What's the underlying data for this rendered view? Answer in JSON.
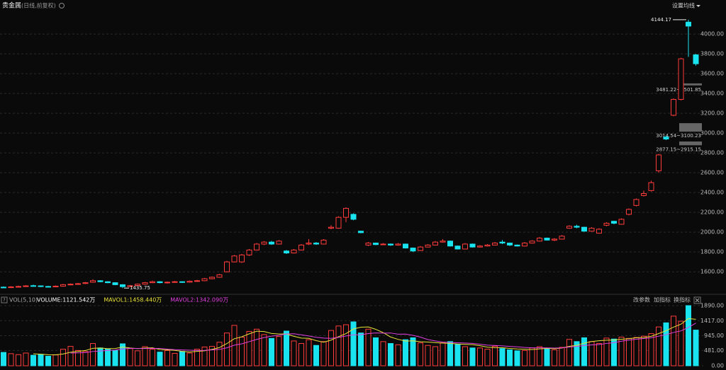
{
  "toolbar": {
    "title": "贵金属",
    "subtitle": "(日线,前复权)",
    "settings": "设置均线"
  },
  "volume_toolbar": {
    "items": [
      "改参数",
      "加指标",
      "换指标"
    ]
  },
  "chart_data": [
    {
      "type": "candlestick",
      "up_color": "#ff3b3b",
      "down_color": "#19e3ee",
      "grid": true,
      "ylim": [
        1380,
        4215
      ],
      "yticks": [
        {
          "value": 1600,
          "label": "1600.00"
        },
        {
          "value": 1800,
          "label": "1800.00"
        },
        {
          "value": 2000,
          "label": "2000.00"
        },
        {
          "value": 2200,
          "label": "2200.00"
        },
        {
          "value": 2400,
          "label": "2400.00"
        },
        {
          "value": 2600,
          "label": "2600.00"
        },
        {
          "value": 2800,
          "label": "2800.00"
        },
        {
          "value": 3000,
          "label": "3000.00"
        },
        {
          "value": 3200,
          "label": "3200.00"
        },
        {
          "value": 3400,
          "label": "3400.00"
        },
        {
          "value": 3600,
          "label": "3600.00"
        },
        {
          "value": 3800,
          "label": "3800.00"
        },
        {
          "value": 4000,
          "label": "4000.00"
        }
      ],
      "open": [
        1445,
        1440,
        1448,
        1452,
        1460,
        1458,
        1452,
        1448,
        1455,
        1470,
        1475,
        1482,
        1495,
        1510,
        1500,
        1490,
        1470,
        1450,
        1462,
        1475,
        1490,
        1500,
        1488,
        1495,
        1500,
        1495,
        1505,
        1510,
        1530,
        1545,
        1600,
        1700,
        1700,
        1770,
        1820,
        1880,
        1900,
        1880,
        1810,
        1790,
        1820,
        1880,
        1890,
        1880,
        2040,
        2040,
        2150,
        2180,
        2010,
        1870,
        1890,
        1875,
        1880,
        1870,
        1880,
        1840,
        1815,
        1850,
        1870,
        1900,
        1910,
        1860,
        1830,
        1880,
        1850,
        1860,
        1870,
        1900,
        1890,
        1870,
        1860,
        1890,
        1910,
        1940,
        1920,
        1930,
        2040,
        2060,
        2050,
        2010,
        1990,
        2070,
        2110,
        2080,
        2180,
        2270,
        2370,
        2420,
        2620,
        2960,
        3180,
        3340,
        4120,
        3790
      ],
      "close": [
        1440,
        1448,
        1452,
        1458,
        1458,
        1452,
        1448,
        1455,
        1470,
        1475,
        1480,
        1490,
        1510,
        1500,
        1490,
        1470,
        1450,
        1460,
        1475,
        1490,
        1500,
        1490,
        1495,
        1500,
        1495,
        1505,
        1510,
        1530,
        1545,
        1570,
        1700,
        1760,
        1770,
        1820,
        1880,
        1900,
        1880,
        1910,
        1790,
        1820,
        1870,
        1890,
        1880,
        1920,
        2050,
        2150,
        2240,
        2130,
        1995,
        1890,
        1875,
        1880,
        1870,
        1880,
        1840,
        1810,
        1850,
        1870,
        1900,
        1910,
        1860,
        1830,
        1880,
        1850,
        1860,
        1870,
        1890,
        1890,
        1870,
        1860,
        1890,
        1910,
        1940,
        1920,
        1930,
        1960,
        2060,
        2050,
        2010,
        2040,
        2030,
        2090,
        2090,
        2130,
        2230,
        2330,
        2390,
        2500,
        2780,
        2940,
        3340,
        3750,
        4080,
        3700
      ],
      "high": [
        1452,
        1455,
        1460,
        1465,
        1470,
        1462,
        1458,
        1462,
        1478,
        1482,
        1488,
        1497,
        1525,
        1515,
        1505,
        1494,
        1475,
        1467,
        1482,
        1497,
        1510,
        1505,
        1502,
        1508,
        1505,
        1512,
        1518,
        1538,
        1552,
        1578,
        1710,
        1770,
        1780,
        1830,
        1890,
        1910,
        1912,
        1920,
        1820,
        1830,
        1880,
        1930,
        1900,
        1930,
        2070,
        2160,
        2250,
        2190,
        2015,
        1900,
        1895,
        1890,
        1886,
        1890,
        1885,
        1845,
        1860,
        1878,
        1910,
        1930,
        1915,
        1865,
        1890,
        1885,
        1868,
        1880,
        1900,
        1920,
        1895,
        1875,
        1900,
        1918,
        1950,
        1945,
        1940,
        1970,
        2070,
        2075,
        2055,
        2050,
        2040,
        2100,
        2115,
        2140,
        2240,
        2340,
        2420,
        2520,
        2790,
        2975,
        3350,
        3760,
        4144.17,
        3800
      ],
      "low": [
        1436,
        1437,
        1444,
        1448,
        1450,
        1446,
        1442,
        1444,
        1450,
        1465,
        1470,
        1476,
        1490,
        1495,
        1484,
        1465,
        1435.75,
        1445,
        1458,
        1470,
        1486,
        1484,
        1482,
        1490,
        1488,
        1490,
        1500,
        1505,
        1525,
        1540,
        1595,
        1695,
        1690,
        1760,
        1815,
        1870,
        1872,
        1875,
        1780,
        1785,
        1815,
        1870,
        1872,
        1875,
        2030,
        2035,
        2100,
        2120,
        1990,
        1860,
        1868,
        1870,
        1862,
        1864,
        1835,
        1800,
        1810,
        1845,
        1865,
        1895,
        1855,
        1825,
        1825,
        1845,
        1845,
        1855,
        1865,
        1880,
        1860,
        1855,
        1855,
        1885,
        1905,
        1915,
        1910,
        1925,
        2035,
        2040,
        2005,
        2005,
        1985,
        2060,
        2080,
        2075,
        2170,
        2260,
        2360,
        2410,
        2600,
        2930,
        3170,
        3330,
        3770,
        3680
      ],
      "gaps": [
        {
          "low": 3481.22,
          "high": 3501.85,
          "label": "3481.22~3501.85"
        },
        {
          "low": 3014.54,
          "high": 3100.23,
          "label": "3014.54~3100.23"
        },
        {
          "low": 2877.15,
          "high": 2915.15,
          "label": "2877.15~2915.15"
        }
      ]
    },
    {
      "type": "bar",
      "indicator": "VOL(5,10)",
      "ylim": [
        0,
        1935
      ],
      "yticks": [
        {
          "value": 0,
          "label": "0.00"
        },
        {
          "value": 481,
          "label": "481.00"
        },
        {
          "value": 945,
          "label": "945.00"
        },
        {
          "value": 1417,
          "label": "1417.00"
        },
        {
          "value": 1890,
          "label": "1890.00"
        }
      ],
      "series": [
        {
          "name": "VOLUME:1121.542万",
          "color": "#ffffff",
          "values": [
            420,
            380,
            350,
            400,
            330,
            360,
            300,
            340,
            520,
            610,
            480,
            450,
            700,
            560,
            520,
            480,
            690,
            540,
            470,
            600,
            520,
            430,
            480,
            390,
            450,
            400,
            520,
            590,
            610,
            740,
            1030,
            1270,
            900,
            1080,
            1150,
            980,
            860,
            920,
            1090,
            780,
            700,
            820,
            640,
            760,
            1110,
            1250,
            1290,
            1380,
            1030,
            1150,
            880,
            760,
            700,
            660,
            820,
            880,
            720,
            640,
            600,
            720,
            760,
            680,
            600,
            560,
            560,
            520,
            610,
            540,
            500,
            470,
            480,
            560,
            600,
            540,
            500,
            580,
            830,
            760,
            880,
            760,
            700,
            870,
            840,
            900,
            860,
            890,
            930,
            1010,
            1220,
            1350,
            1560,
            1400,
            1890,
            1121.542
          ]
        },
        {
          "name": "MAVOL1:1458.440万",
          "color": "#e8e23a",
          "values": [
            null,
            null,
            null,
            null,
            376,
            364,
            348,
            346,
            370,
            426,
            450,
            480,
            548,
            560,
            536,
            542,
            590,
            558,
            540,
            556,
            564,
            512,
            500,
            484,
            454,
            430,
            452,
            470,
            514,
            572,
            698,
            850,
            910,
            1004,
            1086,
            1076,
            1014,
            998,
            1000,
            926,
            870,
            862,
            790,
            740,
            806,
            916,
            1010,
            1156,
            1212,
            1220,
            1146,
            1040,
            904,
            830,
            776,
            784,
            756,
            744,
            728,
            712,
            704,
            684,
            672,
            664,
            632,
            584,
            570,
            566,
            546,
            528,
            520,
            510,
            530,
            548,
            536,
            556,
            612,
            642,
            710,
            762,
            786,
            804,
            810,
            834,
            852,
            880,
            886,
            926,
            1012,
            1102,
            1214,
            1308,
            1484,
            1458.44
          ]
        },
        {
          "name": "MAVOL2:1342.090万",
          "color": "#e040e0",
          "values": [
            null,
            null,
            null,
            null,
            null,
            null,
            null,
            null,
            null,
            401,
            407,
            414,
            449,
            465,
            481,
            493,
            528,
            548,
            543,
            542,
            546,
            544,
            522,
            505,
            498,
            490,
            480,
            484,
            499,
            513,
            564,
            648,
            689,
            758,
            828,
            887,
            932,
            956,
            1002,
            1006,
            973,
            938,
            894,
            869,
            863,
            893,
            936,
            973,
            976,
            1013,
            1031,
            1025,
            1030,
            993,
            994,
            957,
            900,
            824,
            781,
            744,
            732,
            724,
            714,
            704,
            678,
            648,
            637,
            626,
            610,
            596,
            576,
            564,
            564,
            562,
            556,
            562,
            590,
            610,
            636,
            656,
            668,
            702,
            726,
            772,
            807,
            833,
            856,
            878,
            930,
            977,
            1047,
            1097,
            1205,
            1342.09
          ]
        }
      ]
    }
  ]
}
